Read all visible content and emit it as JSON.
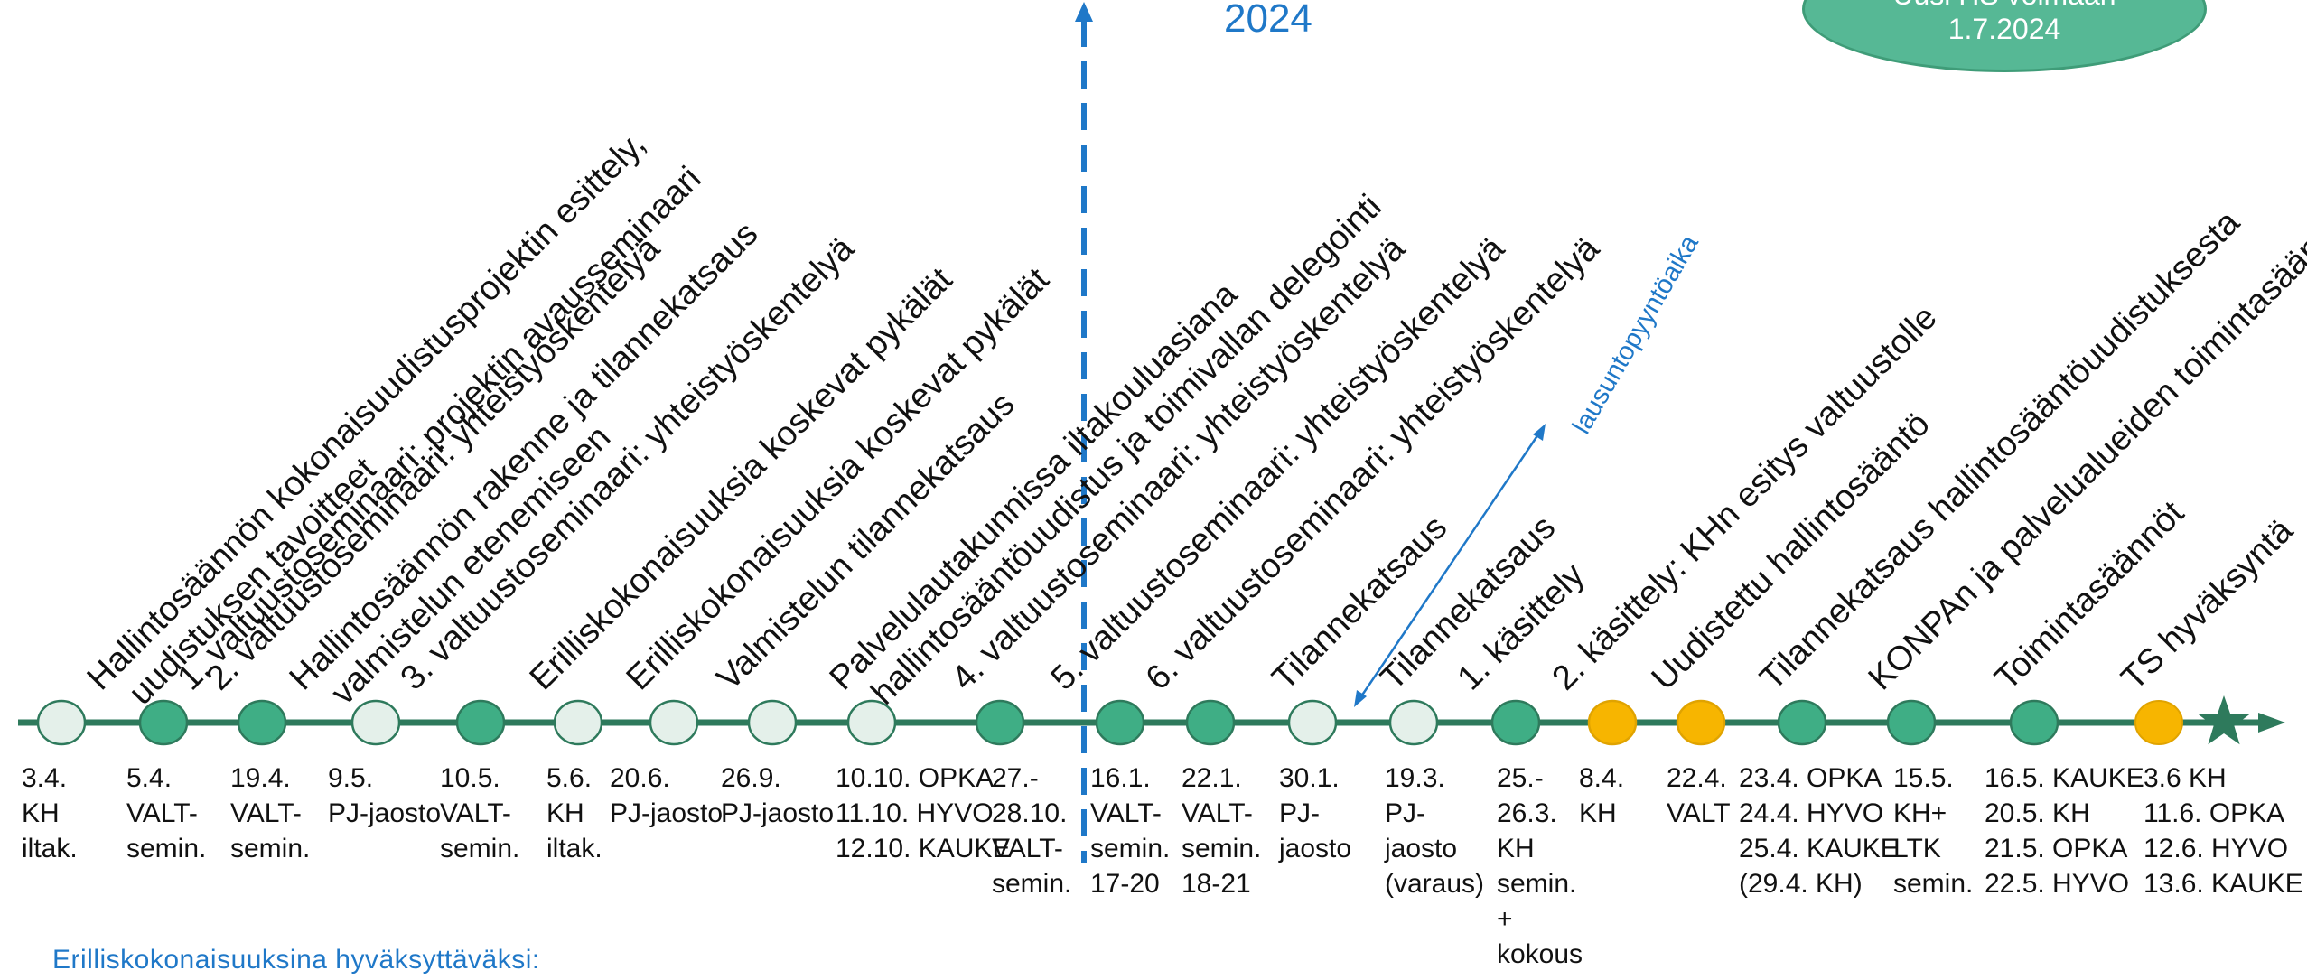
{
  "year": "2024",
  "bubble": {
    "line1": "Uusi HS voimaan",
    "line2": "1.7.2024"
  },
  "note": "Erilliskokonaisuuksina hyväksyttäväksi:",
  "review_label": "lausuntopyyntöaika",
  "colors": {
    "line": "#2e7a5c",
    "filled": "#3fae85",
    "light": "#e4f0ea",
    "yellow": "#f7b500",
    "blue": "#1f78c8"
  },
  "events": [
    {
      "id": "e1",
      "type": "light",
      "title": "Hallintosäännön kokonaisuudistusprojektin esittely,\n  uudistuksen tavoitteet",
      "date": "3.4.\nKH\niltak."
    },
    {
      "id": "e2",
      "type": "filled",
      "title": "1. valtuustoseminaari: projektin avausseminaari",
      "date": "5.4.\nVALT-\nsemin."
    },
    {
      "id": "e3",
      "type": "filled",
      "title": "2. valtuustoseminaari: yhteistyöskentelyä",
      "date": "19.4.\nVALT-\nsemin."
    },
    {
      "id": "e4",
      "type": "light",
      "title": "Hallintosäännön rakenne ja tilannekatsaus\n  valmistelun etenemiseen",
      "date": "9.5.\nPJ-jaosto"
    },
    {
      "id": "e5",
      "type": "filled",
      "title": "3. valtuustoseminaari: yhteistyöskentelyä",
      "date": "10.5.\nVALT-\nsemin."
    },
    {
      "id": "e6",
      "type": "light",
      "title": "Erilliskokonaisuuksia koskevat pykälät",
      "date": "5.6.\nKH\niltak."
    },
    {
      "id": "e7",
      "type": "light",
      "title": "Erilliskokonaisuuksia koskevat pykälät",
      "date": "20.6.\nPJ-jaosto"
    },
    {
      "id": "e8",
      "type": "light",
      "title": "Valmistelun tilannekatsaus",
      "date": "26.9.\nPJ-jaosto"
    },
    {
      "id": "e9",
      "type": "light",
      "title": "Palvelulautakunnissa iltakouluasiana\n  hallintosääntöuudistus ja toimivallan delegointi",
      "date": "10.10. OPKA\n11.10. HYVO\n12.10. KAUKE"
    },
    {
      "id": "e10",
      "type": "filled",
      "title": "4. valtuustoseminaari: yhteistyöskentelyä",
      "date": "27.-\n28.10.\nVALT-\nsemin."
    },
    {
      "id": "e11",
      "type": "filled",
      "title": "5. valtuustoseminaari: yhteistyöskentelyä",
      "date": "16.1.\nVALT-\nsemin.\n17-20"
    },
    {
      "id": "e12",
      "type": "filled",
      "title": "6. valtuustoseminaari: yhteistyöskentelyä",
      "date": "22.1.\nVALT-\nsemin.\n18-21"
    },
    {
      "id": "e13",
      "type": "light",
      "title": "Tilannekatsaus",
      "date": "30.1.\nPJ-\njaosto"
    },
    {
      "id": "e14",
      "type": "light",
      "title": "Tilannekatsaus",
      "date": "19.3.\nPJ-\njaosto\n(varaus)"
    },
    {
      "id": "e15",
      "type": "filled",
      "title": "1. käsittely",
      "date": "25.-\n26.3.\nKH\nsemin.\n+\nkokous"
    },
    {
      "id": "e16",
      "type": "yellow",
      "title": "2. käsittely: KHn esitys valtuustolle",
      "date": "8.4.\nKH"
    },
    {
      "id": "e17",
      "type": "yellow",
      "title": "Uudistettu hallintosääntö",
      "date": "22.4.\nVALT"
    },
    {
      "id": "e18",
      "type": "filled",
      "title": "Tilannekatsaus hallintosääntöuudistuksesta",
      "date": "23.4. OPKA\n24.4. HYVO\n25.4. KAUKE\n(29.4. KH)"
    },
    {
      "id": "e19",
      "type": "filled",
      "title": "KONPAn ja palvelualueiden toimintasäännöt",
      "date": "15.5.\nKH+\nLTK\nsemin."
    },
    {
      "id": "e20",
      "type": "filled",
      "title": "Toimintasäännöt",
      "date": "16.5. KAUKE\n20.5. KH\n21.5. OPKA\n22.5. HYVO"
    },
    {
      "id": "e21",
      "type": "yellow",
      "title": "TS hyväksyntä",
      "date": "3.6 KH\n11.6. OPKA\n12.6. HYVO\n13.6. KAUKE"
    }
  ]
}
